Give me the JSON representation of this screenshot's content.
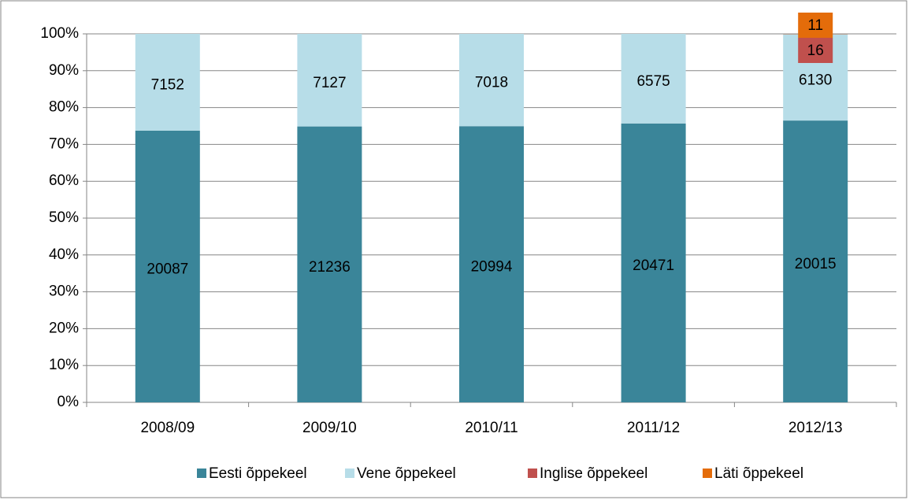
{
  "chart_data": {
    "type": "bar",
    "stacking": "percent",
    "categories": [
      "2008/09",
      "2009/10",
      "2010/11",
      "2011/12",
      "2012/13"
    ],
    "series": [
      {
        "name": "Eesti õppekeel",
        "color": "#3a8599",
        "values": [
          20087,
          21236,
          20994,
          20471,
          20015
        ]
      },
      {
        "name": "Vene õppekeel",
        "color": "#b7dde8",
        "values": [
          7152,
          7127,
          7018,
          6575,
          6130
        ]
      },
      {
        "name": "Inglise õppekeel",
        "color": "#c0504d",
        "values": [
          null,
          null,
          null,
          null,
          16
        ]
      },
      {
        "name": "Läti õppekeel",
        "color": "#e46c0a",
        "values": [
          null,
          null,
          null,
          null,
          11
        ]
      }
    ],
    "ylim": [
      0,
      100
    ],
    "yticks": [
      {
        "value": 0,
        "label": "0%"
      },
      {
        "value": 10,
        "label": "10%"
      },
      {
        "value": 20,
        "label": "20%"
      },
      {
        "value": 30,
        "label": "30%"
      },
      {
        "value": 40,
        "label": "40%"
      },
      {
        "value": 50,
        "label": "50%"
      },
      {
        "value": 60,
        "label": "60%"
      },
      {
        "value": 70,
        "label": "70%"
      },
      {
        "value": 80,
        "label": "80%"
      },
      {
        "value": 90,
        "label": "90%"
      },
      {
        "value": 100,
        "label": "100%"
      }
    ],
    "grid": true,
    "legend": "bottom"
  }
}
